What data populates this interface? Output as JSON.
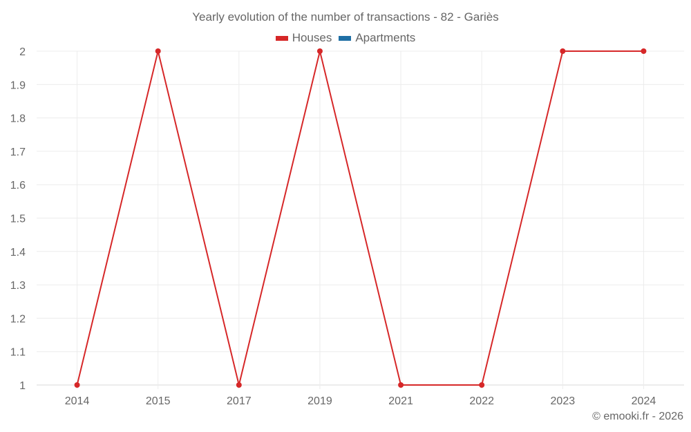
{
  "chart_data": {
    "type": "line",
    "title": "Yearly evolution of the number of transactions - 82 - Gariès",
    "categories": [
      "2014",
      "2015",
      "2017",
      "2019",
      "2021",
      "2022",
      "2023",
      "2024"
    ],
    "series": [
      {
        "name": "Houses",
        "color": "#d62728",
        "values": [
          1,
          2,
          1,
          2,
          1,
          1,
          2,
          2
        ]
      },
      {
        "name": "Apartments",
        "color": "#1f6fa5",
        "values": []
      }
    ],
    "xlabel": "",
    "ylabel": "",
    "ylim": [
      1,
      2
    ],
    "yticks": [
      "1",
      "1.1",
      "1.2",
      "1.3",
      "1.4",
      "1.5",
      "1.6",
      "1.7",
      "1.8",
      "1.9",
      "2"
    ],
    "grid": true,
    "legend_position": "top"
  },
  "legend": {
    "houses_label": "Houses",
    "apartments_label": "Apartments"
  },
  "footer": {
    "credit": "© emooki.fr - 2026"
  }
}
